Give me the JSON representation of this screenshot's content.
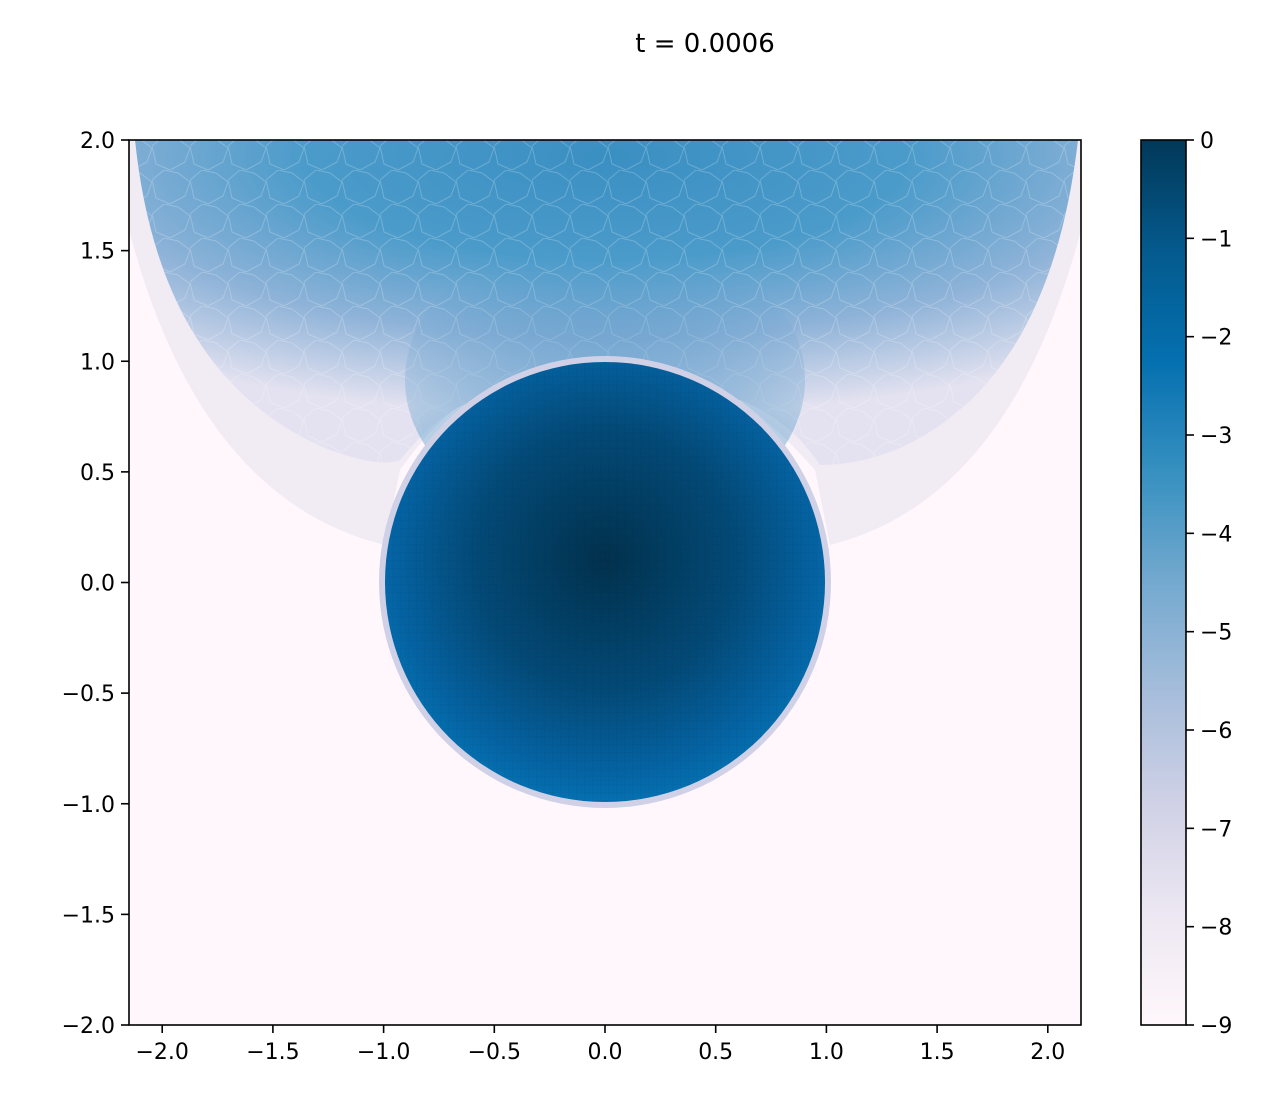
{
  "chart_data": {
    "type": "heatmap",
    "title": "t = 0.0006",
    "xlabel": "",
    "ylabel": "",
    "xlim": [
      -2.15,
      2.15
    ],
    "ylim": [
      -2.0,
      2.0
    ],
    "x_ticks": [
      -2.0,
      -1.5,
      -1.0,
      -0.5,
      0.0,
      0.5,
      1.0,
      1.5,
      2.0
    ],
    "x_tick_labels": [
      "−2.0",
      "−1.5",
      "−1.0",
      "−0.5",
      "0.0",
      "0.5",
      "1.0",
      "1.5",
      "2.0"
    ],
    "y_ticks": [
      2.0,
      1.5,
      1.0,
      0.5,
      0.0,
      -0.5,
      -1.0,
      -1.5,
      -2.0
    ],
    "y_tick_labels": [
      "2.0",
      "1.5",
      "1.0",
      "0.5",
      "0.0",
      "−0.5",
      "−1.0",
      "−1.5",
      "−2.0"
    ],
    "grid": false,
    "colorbar": {
      "range": [
        -9,
        0
      ],
      "ticks": [
        0,
        -1,
        -2,
        -3,
        -4,
        -5,
        -6,
        -7,
        -8,
        -9
      ],
      "tick_labels": [
        "0",
        "−1",
        "−2",
        "−3",
        "−4",
        "−5",
        "−6",
        "−7",
        "−8",
        "−9"
      ],
      "colors": [
        "#fff7fb",
        "#ece7f2",
        "#d0d1e6",
        "#a6bddb",
        "#74a9cf",
        "#3690c0",
        "#0570b0",
        "#045a8d",
        "#023858"
      ]
    },
    "disk": {
      "center": [
        0.0,
        0.0
      ],
      "radius": 1.0,
      "value": -1.2
    },
    "plume": {
      "center_x": 0.0,
      "top_y": 2.0,
      "neck_y": 0.75,
      "value_near_neck": -2.3,
      "value_top_center": -3.6,
      "edge_value": -8.5
    },
    "background_value": -9.0
  }
}
